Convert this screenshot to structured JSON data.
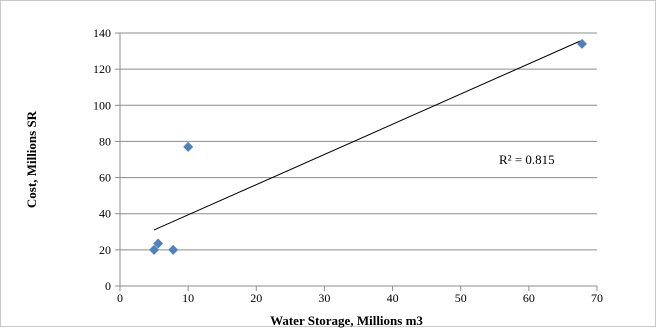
{
  "chart_data": {
    "type": "scatter",
    "title": "",
    "xlabel": "Water Storage, Millions m3",
    "ylabel": "Cost, Millions SR",
    "xlim": [
      0,
      70
    ],
    "ylim": [
      0,
      140
    ],
    "x_ticks": [
      "0",
      "10",
      "20",
      "30",
      "40",
      "50",
      "60",
      "70"
    ],
    "y_ticks": [
      "0",
      "20",
      "40",
      "60",
      "80",
      "100",
      "120",
      "140"
    ],
    "grid": "horizontal",
    "series": [
      {
        "points": [
          [
            5,
            20
          ],
          [
            5.6,
            23.5
          ],
          [
            7.8,
            20
          ],
          [
            10,
            77
          ],
          [
            67.8,
            134
          ]
        ],
        "color": "#4f81bd"
      }
    ],
    "trendline": {
      "type": "linear",
      "from": [
        5,
        31
      ],
      "to": [
        67.5,
        135.5
      ],
      "color": "#000000"
    },
    "annotation": "R² = 0.815"
  }
}
